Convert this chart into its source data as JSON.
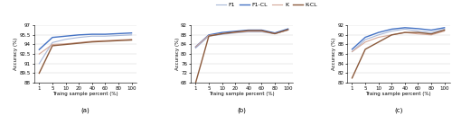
{
  "x": [
    1,
    5,
    10,
    20,
    40,
    60,
    80,
    100
  ],
  "legend_labels": [
    "F1",
    "F1-CL",
    "K",
    "K-CL"
  ],
  "colors": {
    "F1": "#a8b8d8",
    "F1-CL": "#4472c4",
    "K": "#d4a898",
    "K-CL": "#8b5a3c"
  },
  "subplot_a": {
    "F1": [
      91.0,
      94.3,
      94.8,
      95.1,
      95.3,
      95.3,
      95.4,
      95.5
    ],
    "F1-CL": [
      93.2,
      95.1,
      95.3,
      95.5,
      95.6,
      95.6,
      95.7,
      95.8
    ],
    "K": [
      92.5,
      94.0,
      94.1,
      94.3,
      94.5,
      94.6,
      94.7,
      94.8
    ],
    "K-CL": [
      89.5,
      93.8,
      94.0,
      94.2,
      94.4,
      94.5,
      94.6,
      94.7
    ],
    "ylim": [
      88,
      97
    ],
    "yticks": [
      88,
      89.5,
      91,
      92.5,
      94,
      95.5,
      97
    ],
    "ytick_labels": [
      "88",
      "89.5",
      "91",
      "92.5",
      "94",
      "95.5",
      "97"
    ],
    "label": "(a)"
  },
  "subplot_b": {
    "F1": [
      82.5,
      87.5,
      88.2,
      88.8,
      89.2,
      89.2,
      88.5,
      90.0
    ],
    "F1-CL": [
      83.0,
      88.0,
      89.0,
      89.5,
      90.0,
      90.0,
      88.8,
      90.5
    ],
    "K": [
      83.0,
      87.8,
      88.5,
      89.0,
      89.5,
      89.5,
      88.5,
      90.0
    ],
    "K-CL": [
      68.0,
      87.5,
      88.5,
      89.2,
      89.8,
      89.8,
      88.5,
      90.2
    ],
    "ylim": [
      68,
      92
    ],
    "yticks": [
      68,
      72,
      76,
      80,
      84,
      88,
      92
    ],
    "ytick_labels": [
      "68",
      "72",
      "76",
      "80",
      "84",
      "88",
      "92"
    ],
    "label": "(b)"
  },
  "subplot_c": {
    "F1": [
      86.5,
      89.0,
      90.0,
      90.8,
      91.2,
      90.8,
      90.5,
      91.2
    ],
    "F1-CL": [
      87.0,
      89.5,
      90.5,
      91.2,
      91.5,
      91.3,
      91.0,
      91.5
    ],
    "K": [
      86.5,
      88.5,
      89.5,
      90.0,
      90.5,
      90.2,
      90.0,
      90.8
    ],
    "K-CL": [
      81.0,
      87.0,
      88.5,
      90.0,
      90.5,
      90.5,
      90.2,
      91.0
    ],
    "ylim": [
      80,
      92
    ],
    "yticks": [
      80,
      82,
      84,
      86,
      88,
      90,
      92
    ],
    "ytick_labels": [
      "80",
      "82",
      "84",
      "86",
      "88",
      "90",
      "92"
    ],
    "label": "(c)"
  },
  "xlabel": "Traing sample percent (%)",
  "xtick_labels": [
    "1",
    "5",
    "10",
    "20",
    "40",
    "60",
    "80",
    "100"
  ],
  "ylabel": "Accuracy (%)"
}
